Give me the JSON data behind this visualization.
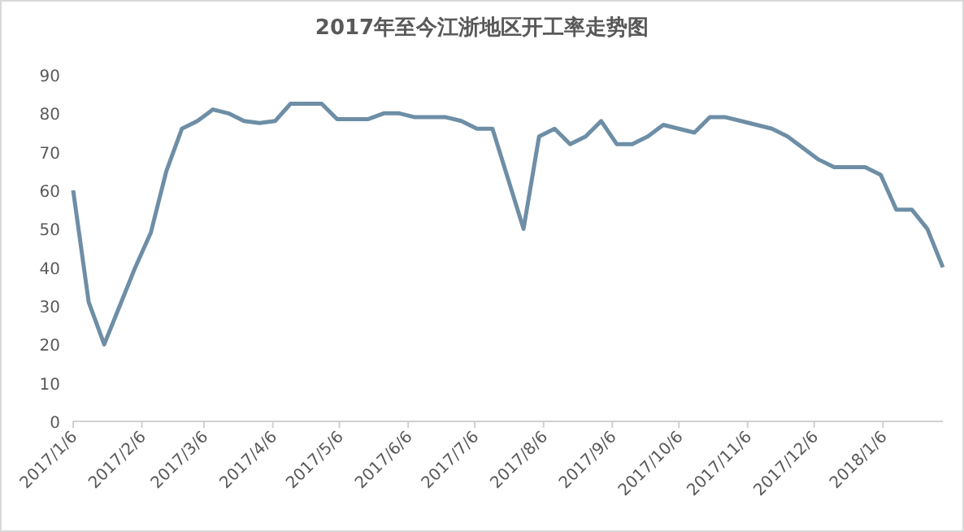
{
  "chart_data": {
    "type": "line",
    "title": "2017年至今江浙地区开工率走势图",
    "x": [
      "2017-01-06",
      "2017-01-13",
      "2017-01-20",
      "2017-01-27",
      "2017-02-03",
      "2017-02-10",
      "2017-02-17",
      "2017-02-24",
      "2017-03-03",
      "2017-03-10",
      "2017-03-17",
      "2017-03-24",
      "2017-03-31",
      "2017-04-07",
      "2017-04-14",
      "2017-04-21",
      "2017-04-28",
      "2017-05-05",
      "2017-05-12",
      "2017-05-19",
      "2017-05-26",
      "2017-06-02",
      "2017-06-09",
      "2017-06-16",
      "2017-06-23",
      "2017-06-30",
      "2017-07-07",
      "2017-07-14",
      "2017-07-21",
      "2017-07-28",
      "2017-08-04",
      "2017-08-11",
      "2017-08-18",
      "2017-08-25",
      "2017-09-01",
      "2017-09-08",
      "2017-09-15",
      "2017-09-22",
      "2017-09-29",
      "2017-10-06",
      "2017-10-13",
      "2017-10-20",
      "2017-10-27",
      "2017-11-03",
      "2017-11-10",
      "2017-11-17",
      "2017-11-24",
      "2017-12-01",
      "2017-12-08",
      "2017-12-15",
      "2017-12-22",
      "2017-12-29",
      "2018-01-05",
      "2018-01-12",
      "2018-01-19",
      "2018-01-26",
      "2018-02-02"
    ],
    "series": [
      {
        "color": "#6e8ea6",
        "values": [
          60,
          31,
          20,
          30,
          40,
          49,
          65,
          76,
          78,
          81,
          80,
          78,
          77.5,
          78,
          82.5,
          82.5,
          82.5,
          78.5,
          78.5,
          78.5,
          80,
          80,
          79,
          79,
          79,
          78,
          76,
          76,
          63,
          50,
          74,
          76,
          72,
          74,
          78,
          72,
          72,
          74,
          77,
          76,
          75,
          79,
          79,
          78,
          77,
          76,
          74,
          71,
          68,
          66,
          66,
          66,
          64,
          55,
          55,
          50,
          40
        ]
      }
    ],
    "xlim": [
      "2017-01-06",
      "2018-02-02"
    ],
    "xticks": [
      {
        "value": "2017-01-06",
        "label": "2017/1/6"
      },
      {
        "value": "2017-02-06",
        "label": "2017/2/6"
      },
      {
        "value": "2017-03-06",
        "label": "2017/3/6"
      },
      {
        "value": "2017-04-06",
        "label": "2017/4/6"
      },
      {
        "value": "2017-05-06",
        "label": "2017/5/6"
      },
      {
        "value": "2017-06-06",
        "label": "2017/6/6"
      },
      {
        "value": "2017-07-06",
        "label": "2017/7/6"
      },
      {
        "value": "2017-08-06",
        "label": "2017/8/6"
      },
      {
        "value": "2017-09-06",
        "label": "2017/9/6"
      },
      {
        "value": "2017-10-06",
        "label": "2017/10/6"
      },
      {
        "value": "2017-11-06",
        "label": "2017/11/6"
      },
      {
        "value": "2017-12-06",
        "label": "2017/12/6"
      },
      {
        "value": "2018-01-06",
        "label": "2018/1/6"
      }
    ],
    "ylim": [
      0,
      90
    ],
    "yticks": [
      0,
      10,
      20,
      30,
      40,
      50,
      60,
      70,
      80,
      90
    ],
    "grid": false
  }
}
